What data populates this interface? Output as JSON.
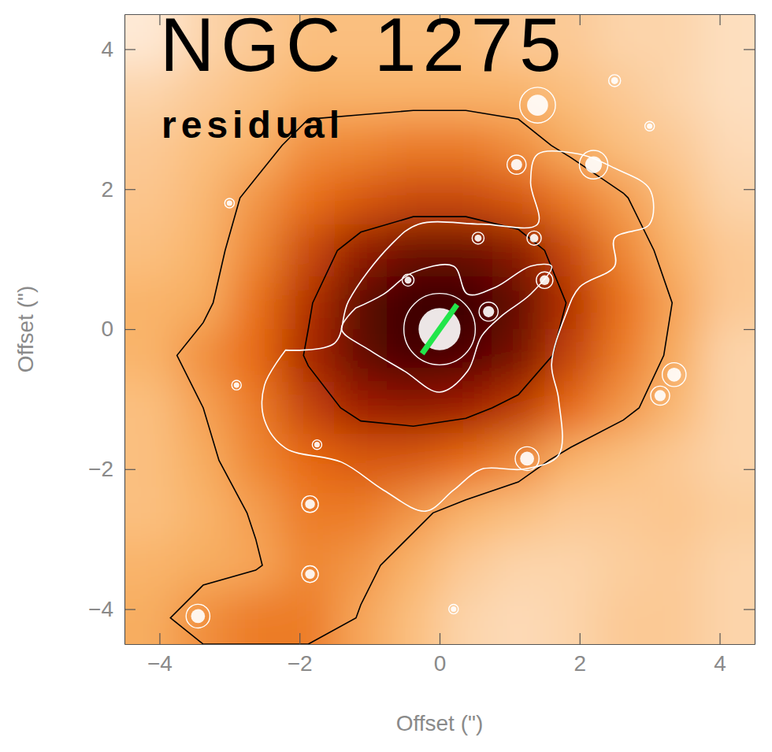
{
  "chart_data": {
    "type": "heatmap",
    "title": "NGC 1275",
    "subtitle": "residual",
    "x_label": "Offset (\")",
    "y_label": "Offset (\")",
    "xlim": [
      -4.5,
      4.5
    ],
    "ylim": [
      -4.5,
      4.5
    ],
    "xticks": [
      -4,
      -2,
      0,
      2,
      4
    ],
    "yticks": [
      -4,
      -2,
      0,
      2,
      4
    ],
    "x": [
      -4.125,
      -3.375,
      -2.625,
      -1.875,
      -1.125,
      -0.375,
      0.375,
      1.125,
      1.875,
      2.625,
      3.375,
      4.125
    ],
    "y": [
      4.125,
      3.375,
      2.625,
      1.875,
      1.125,
      0.375,
      -0.375,
      -1.125,
      -1.875,
      -2.625,
      -3.375,
      -4.125
    ],
    "z": [
      [
        0.05,
        0.15,
        0.2,
        0.25,
        0.25,
        0.25,
        0.25,
        0.2,
        0.2,
        0.15,
        0.15,
        0.1
      ],
      [
        0.15,
        0.2,
        0.25,
        0.3,
        0.3,
        0.3,
        0.3,
        0.3,
        0.25,
        0.2,
        0.15,
        0.1
      ],
      [
        0.2,
        0.25,
        0.3,
        0.4,
        0.42,
        0.45,
        0.45,
        0.4,
        0.32,
        0.25,
        0.2,
        0.12
      ],
      [
        0.22,
        0.28,
        0.38,
        0.48,
        0.55,
        0.6,
        0.6,
        0.55,
        0.45,
        0.36,
        0.25,
        0.15
      ],
      [
        0.25,
        0.3,
        0.42,
        0.6,
        0.78,
        0.88,
        0.88,
        0.8,
        0.6,
        0.42,
        0.3,
        0.2
      ],
      [
        0.3,
        0.32,
        0.48,
        0.68,
        0.92,
        1.0,
        1.0,
        0.9,
        0.68,
        0.48,
        0.34,
        0.2
      ],
      [
        0.3,
        0.4,
        0.5,
        0.72,
        0.9,
        0.98,
        0.95,
        0.85,
        0.62,
        0.45,
        0.32,
        0.15
      ],
      [
        0.25,
        0.35,
        0.45,
        0.62,
        0.75,
        0.78,
        0.75,
        0.65,
        0.5,
        0.38,
        0.28,
        0.15
      ],
      [
        0.25,
        0.32,
        0.42,
        0.5,
        0.55,
        0.55,
        0.5,
        0.42,
        0.3,
        0.25,
        0.2,
        0.15
      ],
      [
        0.25,
        0.3,
        0.36,
        0.45,
        0.45,
        0.38,
        0.3,
        0.25,
        0.2,
        0.2,
        0.22,
        0.18
      ],
      [
        0.3,
        0.32,
        0.34,
        0.42,
        0.38,
        0.3,
        0.2,
        0.15,
        0.15,
        0.18,
        0.2,
        0.15
      ],
      [
        0.32,
        0.4,
        0.45,
        0.45,
        0.34,
        0.25,
        0.15,
        0.12,
        0.15,
        0.2,
        0.2,
        0.15
      ]
    ],
    "zlim": [
      0,
      1
    ],
    "contour_levels": [
      0.35,
      0.7
    ],
    "white_contours": [
      {
        "x": [
          -2.2,
          -1.5,
          -1.3,
          -0.7,
          -0.3,
          0.6,
          1.4,
          1.3,
          1.4,
          2.0,
          2.5,
          3.0,
          3.0,
          2.5,
          2.5,
          2.0,
          1.8,
          1.6,
          1.7,
          1.7,
          1.2,
          0.6,
          0.2,
          -0.2,
          -0.8,
          -1.4,
          -2.2,
          -2.5,
          -2.5,
          -2.2
        ],
        "y": [
          -0.3,
          -0.2,
          0.4,
          1.2,
          1.5,
          1.5,
          1.5,
          2.1,
          2.5,
          2.5,
          2.3,
          2.0,
          1.5,
          1.3,
          0.9,
          0.6,
          0.2,
          -0.5,
          -1.0,
          -1.8,
          -2.0,
          -2.0,
          -2.3,
          -2.6,
          -2.3,
          -1.9,
          -1.7,
          -1.3,
          -0.8,
          -0.3
        ]
      },
      {
        "x": [
          -1.2,
          -0.8,
          -0.4,
          0.2,
          0.4,
          0.8,
          1.3,
          1.6,
          1.3,
          0.9,
          0.6,
          0.4,
          0.0,
          -0.5,
          -1.0,
          -1.4,
          -1.2
        ],
        "y": [
          0.3,
          0.5,
          0.8,
          0.9,
          0.5,
          0.6,
          0.9,
          0.9,
          0.5,
          0.2,
          -0.1,
          -0.6,
          -0.9,
          -0.6,
          -0.3,
          0.0,
          0.3
        ]
      }
    ],
    "sources": {
      "x": [
        0.0,
        1.4,
        2.2,
        1.1,
        2.5,
        0.55,
        1.35,
        1.5,
        0.7,
        -0.45,
        -3.0,
        -1.75,
        -1.85,
        -1.85,
        -3.45,
        -2.9,
        1.25,
        3.35,
        3.15,
        0.2,
        3.0
      ],
      "y": [
        0.0,
        3.2,
        2.35,
        2.35,
        3.55,
        1.3,
        1.3,
        0.7,
        0.25,
        0.7,
        1.8,
        -1.65,
        -2.5,
        -3.5,
        -4.1,
        -0.8,
        -1.85,
        -0.65,
        -0.95,
        -4.0,
        2.9
      ],
      "r": [
        0.3,
        0.15,
        0.12,
        0.08,
        0.05,
        0.05,
        0.06,
        0.07,
        0.08,
        0.05,
        0.04,
        0.04,
        0.07,
        0.07,
        0.1,
        0.04,
        0.1,
        0.1,
        0.08,
        0.04,
        0.04
      ]
    },
    "lines": [
      {
        "x": [
          -0.25,
          0.25
        ],
        "y": [
          -0.35,
          0.35
        ],
        "color": "#22e64a"
      }
    ]
  }
}
